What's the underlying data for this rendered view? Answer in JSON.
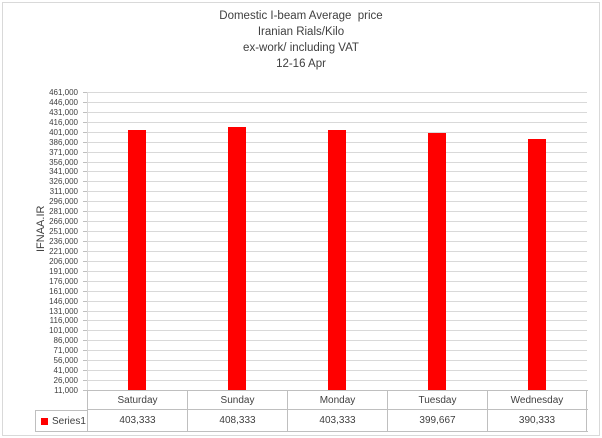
{
  "title": {
    "lines": [
      "Domestic I-beam Average  price",
      "Iranian Rials/Kilo",
      "ex-work/ including VAT",
      "12-16 Apr"
    ]
  },
  "chart_data": {
    "type": "bar",
    "title": "Domestic I-beam Average  price Iranian Rials/Kilo ex-work/ including VAT 12-16 Apr",
    "categories": [
      "Saturday",
      "Sunday",
      "Monday",
      "Tuesday",
      "Wednesday"
    ],
    "series": [
      {
        "name": "Series1",
        "values": [
          403333,
          408333,
          403333,
          399667,
          390333
        ]
      }
    ],
    "xlabel": "",
    "ylabel": "IFNAA.IR",
    "ylim": [
      11000,
      461000
    ],
    "ytick_step": 15000,
    "ytick_labels_top_to_bottom": [
      "461,000",
      "446,000",
      "431,000",
      "416,000",
      "401,000",
      "386,000",
      "371,000",
      "356,000",
      "341,000",
      "326,000",
      "311,000",
      "296,000",
      "281,000",
      "266,000",
      "251,000",
      "236,000",
      "221,000",
      "206,000",
      "191,000",
      "176,000",
      "161,000",
      "146,000",
      "131,000",
      "116,000",
      "101,000",
      "86,000",
      "71,000",
      "56,000",
      "41,000",
      "26,000",
      "11,000"
    ],
    "grid": true,
    "legend_position": "bottom-data-table",
    "data_table": {
      "row_label": "Series1",
      "values_formatted": [
        "403,333",
        "408,333",
        "403,333",
        "399,667",
        "390,333"
      ]
    }
  },
  "colors": {
    "bar": "#ff0000",
    "legend_marker": "#ff0000",
    "gridline": "#d9d9d9",
    "axis": "#bfbfbf",
    "text": "#3f3f3f",
    "outer_border": "#d9d9d9",
    "background": "#ffffff"
  }
}
